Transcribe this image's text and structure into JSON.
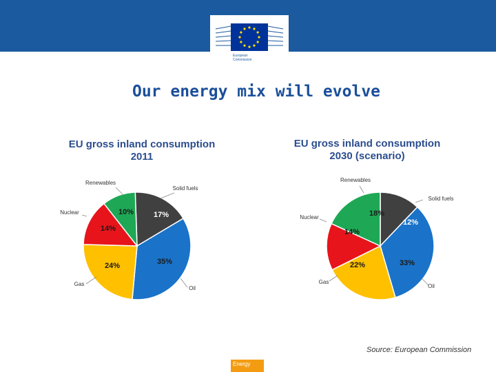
{
  "header": {
    "logo_text_line1": "European",
    "logo_text_line2": "Commission",
    "colors": {
      "banner": "#1b5a9e",
      "flag": "#003399",
      "star": "#ffdd00"
    }
  },
  "slide": {
    "title": "Our energy mix will evolve",
    "source": "Source: European Commission",
    "footer_label": "Energy"
  },
  "chart_data": [
    {
      "type": "pie",
      "title_line1": "EU gross inland consumption",
      "title_line2": "2011",
      "slices": [
        {
          "label": "Solid fuels",
          "value": 17,
          "display": "17%",
          "color": "#404040"
        },
        {
          "label": "Oil",
          "value": 35,
          "display": "35%",
          "color": "#1a73c9"
        },
        {
          "label": "Gas",
          "value": 24,
          "display": "24%",
          "color": "#ffc000"
        },
        {
          "label": "Nuclear",
          "value": 14,
          "display": "14%",
          "color": "#e8141b"
        },
        {
          "label": "Renewables",
          "value": 10,
          "display": "10%",
          "color": "#1ea855"
        }
      ]
    },
    {
      "type": "pie",
      "title_line1": "EU gross inland consumption",
      "title_line2": "2030 (scenario)",
      "slices": [
        {
          "label": "Solid fuels",
          "value": 12,
          "display": "12%",
          "color": "#404040"
        },
        {
          "label": "Oil",
          "value": 33,
          "display": "33%",
          "color": "#1a73c9"
        },
        {
          "label": "Gas",
          "value": 22,
          "display": "22%",
          "color": "#ffc000"
        },
        {
          "label": "Nuclear",
          "value": 14,
          "display": "14%",
          "color": "#e8141b"
        },
        {
          "label": "Renewables",
          "value": 18,
          "display": "18%",
          "color": "#1ea855"
        }
      ]
    }
  ]
}
